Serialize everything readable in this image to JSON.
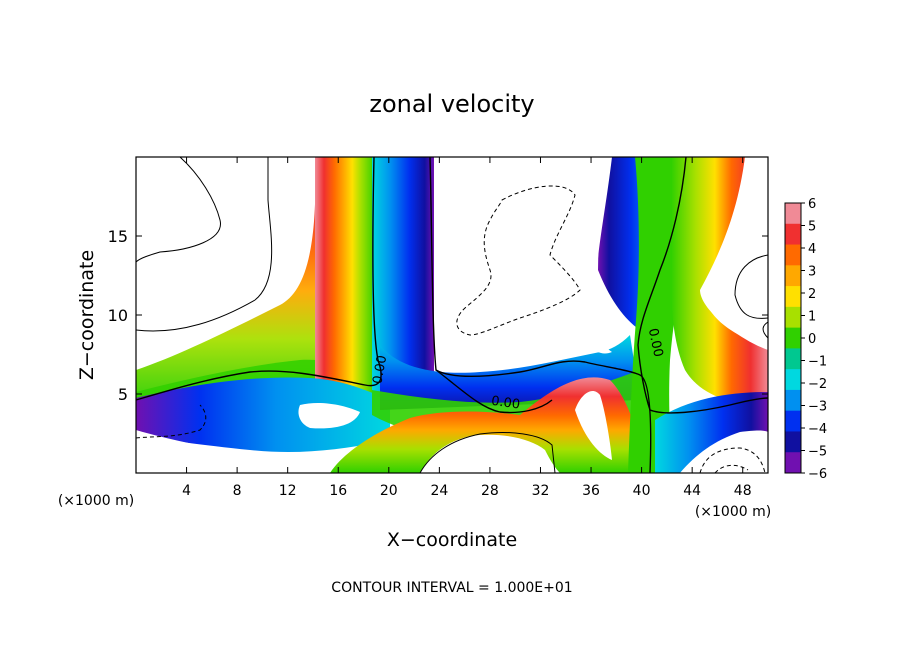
{
  "chart_data": {
    "type": "heatmap",
    "title": "zonal velocity",
    "xlabel": "X−coordinate",
    "ylabel": "Z−coordinate",
    "x_unit_left": "(×1000 m)",
    "x_unit_right": "(×1000 m)",
    "footer": "CONTOUR INTERVAL = 1.000E+01",
    "xlim": [
      0,
      50
    ],
    "ylim": [
      0,
      20
    ],
    "x_ticks": [
      4,
      8,
      12,
      16,
      20,
      24,
      28,
      32,
      36,
      40,
      44,
      48
    ],
    "x_tick_labels": [
      "4",
      "8",
      "12",
      "16",
      "20",
      "24",
      "28",
      "32",
      "36",
      "40",
      "44",
      "48"
    ],
    "y_ticks": [
      5,
      10,
      15
    ],
    "y_tick_labels": [
      "5",
      "10",
      "15"
    ],
    "colorbar": {
      "range": [
        -6,
        6
      ],
      "tick_values": [
        6,
        5,
        4,
        3,
        2,
        1,
        0,
        -1,
        -2,
        -3,
        -4,
        -5,
        -6
      ],
      "tick_labels": [
        "6",
        "5",
        "4",
        "3",
        "2",
        "1",
        "0",
        "−1",
        "−2",
        "−3",
        "−4",
        "−5",
        "−6"
      ],
      "colors": [
        "#f08a96",
        "#f03030",
        "#ff6a00",
        "#ffa800",
        "#ffe000",
        "#a8e000",
        "#30d000",
        "#00c890",
        "#00d8e0",
        "#0090f0",
        "#0030f0",
        "#1010a0",
        "#7010b0"
      ]
    },
    "contour_labels": [
      {
        "text": "0.00",
        "x": 19.6,
        "y": 6.5,
        "angle": -80
      },
      {
        "text": "0.00",
        "x": 29.2,
        "y": 4.2,
        "angle": 8
      },
      {
        "text": "0.00",
        "x": 40.8,
        "y": 8.2,
        "angle": 78
      }
    ]
  }
}
